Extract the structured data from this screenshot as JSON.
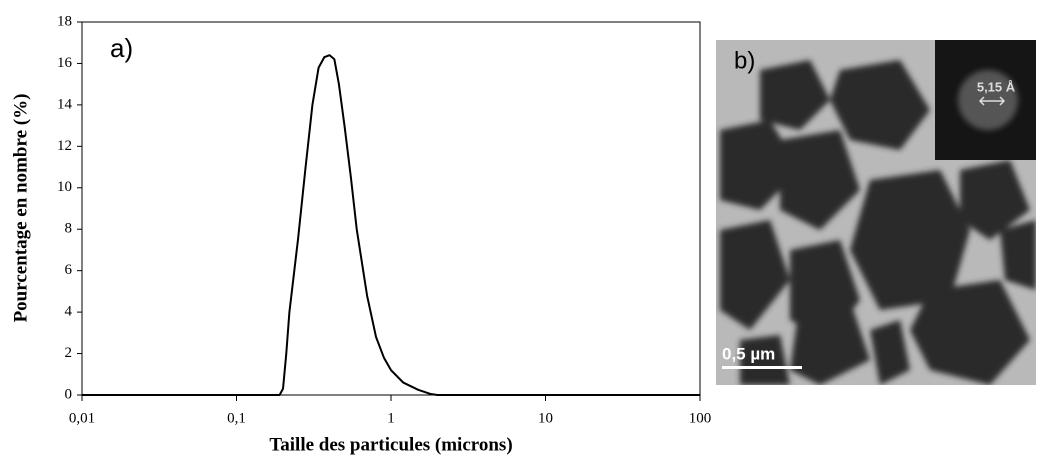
{
  "chart_data": {
    "type": "line",
    "xlabel": "Taille des particules (microns)",
    "ylabel": "Pourcentage en nombre (%)",
    "annotation": "a)",
    "xscale": "log",
    "color": "#000000",
    "x": [
      0.01,
      0.1,
      0.19,
      0.2,
      0.21,
      0.22,
      0.25,
      0.28,
      0.31,
      0.34,
      0.37,
      0.4,
      0.43,
      0.46,
      0.5,
      0.55,
      0.6,
      0.7,
      0.8,
      0.9,
      1,
      1.2,
      1.5,
      1.8,
      2,
      10,
      100
    ],
    "values": [
      0,
      0,
      0,
      0.3,
      2,
      4,
      7.5,
      11,
      14,
      15.8,
      16.3,
      16.4,
      16.2,
      15,
      13,
      10.5,
      8,
      4.8,
      2.8,
      1.8,
      1.2,
      0.6,
      0.25,
      0.05,
      0,
      0,
      0
    ],
    "xlim": [
      0.01,
      100
    ],
    "xticks": [
      {
        "value": 0.01,
        "label": "0,01"
      },
      {
        "value": 0.1,
        "label": "0,1"
      },
      1,
      10,
      100
    ],
    "ylim": [
      0,
      18
    ],
    "yticks": [
      0,
      2,
      4,
      6,
      8,
      10,
      12,
      14,
      16,
      18
    ]
  },
  "panel_b": {
    "label": "b)",
    "inset_label": "5,15 Å",
    "scale_label": "0,5 µm"
  }
}
